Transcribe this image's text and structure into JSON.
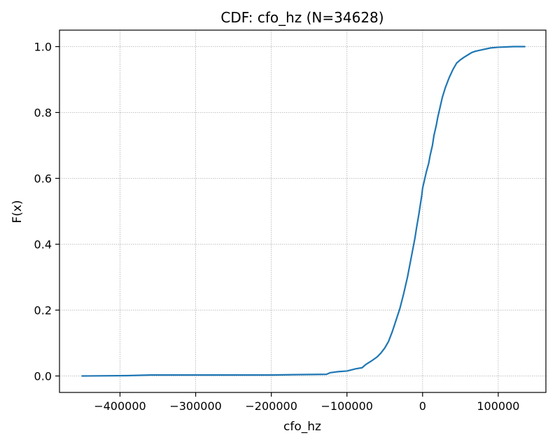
{
  "chart_data": {
    "type": "line",
    "title": "CDF: cfo_hz  (N=34628)",
    "xlabel": "cfo_hz",
    "ylabel": "F(x)",
    "xlim": [
      -480000,
      163000
    ],
    "ylim": [
      -0.05,
      1.05
    ],
    "x_ticks": [
      -400000,
      -300000,
      -200000,
      -100000,
      0,
      100000
    ],
    "x_tick_labels": [
      "−400000",
      "−300000",
      "−200000",
      "−100000",
      "0",
      "100000"
    ],
    "y_ticks": [
      0.0,
      0.2,
      0.4,
      0.6,
      0.8,
      1.0
    ],
    "y_tick_labels": [
      "0.0",
      "0.2",
      "0.4",
      "0.6",
      "0.8",
      "1.0"
    ],
    "grid": true,
    "series": [
      {
        "color": "#1f77b4",
        "x": [
          -450000,
          -390000,
          -360000,
          -300000,
          -200000,
          -170000,
          -127000,
          -122000,
          -112000,
          -100000,
          -95000,
          -88000,
          -80000,
          -75000,
          -68000,
          -60000,
          -55000,
          -50000,
          -45000,
          -40000,
          -35000,
          -30000,
          -25000,
          -20000,
          -15000,
          -10000,
          -8000,
          -5000,
          -3000,
          -1000,
          0,
          1000,
          3000,
          5000,
          8000,
          10000,
          13000,
          15000,
          18000,
          20000,
          23000,
          26000,
          30000,
          35000,
          40000,
          45000,
          50000,
          55000,
          60000,
          65000,
          70000,
          80000,
          90000,
          100000,
          110000,
          120000,
          135000
        ],
        "y": [
          0.0,
          0.001,
          0.003,
          0.003,
          0.003,
          0.004,
          0.005,
          0.01,
          0.013,
          0.015,
          0.018,
          0.022,
          0.025,
          0.035,
          0.045,
          0.058,
          0.07,
          0.085,
          0.105,
          0.135,
          0.17,
          0.205,
          0.25,
          0.3,
          0.36,
          0.42,
          0.45,
          0.49,
          0.52,
          0.55,
          0.57,
          0.58,
          0.6,
          0.62,
          0.645,
          0.67,
          0.7,
          0.73,
          0.76,
          0.785,
          0.815,
          0.845,
          0.875,
          0.905,
          0.93,
          0.95,
          0.96,
          0.968,
          0.975,
          0.982,
          0.986,
          0.991,
          0.996,
          0.998,
          0.999,
          1.0,
          1.0
        ]
      }
    ]
  }
}
